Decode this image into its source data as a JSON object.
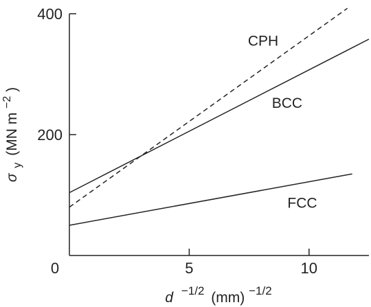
{
  "chart_data": {
    "type": "line",
    "title": "",
    "xlabel": {
      "base": "d",
      "base_exp": "−1/2",
      "unit": "(mm)",
      "unit_exp": "−1/2"
    },
    "ylabel": {
      "symbol": "σ",
      "sub": "y",
      "unit": "(MN m",
      "unit_exp": "−2",
      "close": ")"
    },
    "xlim": [
      0,
      12.5
    ],
    "ylim": [
      0,
      400
    ],
    "x_ticks": [
      {
        "value": 0,
        "label": "0"
      },
      {
        "value": 5,
        "label": "5"
      },
      {
        "value": 10,
        "label": "10"
      }
    ],
    "y_ticks": [
      {
        "value": 200,
        "label": "200"
      },
      {
        "value": 400,
        "label": "400"
      }
    ],
    "grid": false,
    "legend": "none",
    "series": [
      {
        "name": "CPH",
        "style": "dashed",
        "x": [
          0,
          11.6
        ],
        "y": [
          80,
          409
        ],
        "label_at": [
          7.45,
          355
        ]
      },
      {
        "name": "BCC",
        "style": "solid",
        "x": [
          0,
          12.5
        ],
        "y": [
          104,
          358
        ],
        "label_at": [
          8.45,
          252
        ]
      },
      {
        "name": "FCC",
        "style": "solid",
        "x": [
          0,
          11.8
        ],
        "y": [
          50,
          135
        ],
        "label_at": [
          9.1,
          87
        ]
      }
    ]
  }
}
